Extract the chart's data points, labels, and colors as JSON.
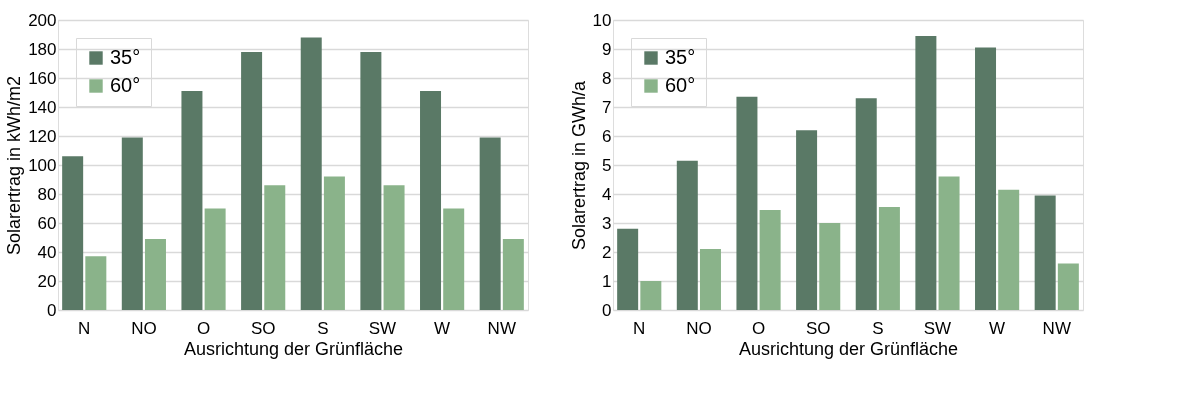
{
  "chart_data": [
    {
      "type": "bar",
      "xlabel": "Ausrichtung der Grünfläche",
      "ylabel": "Solarertrag in kWh/m2",
      "categories": [
        "N",
        "NO",
        "O",
        "SO",
        "S",
        "SW",
        "W",
        "NW"
      ],
      "series": [
        {
          "name": "35°",
          "color": "#5a7966",
          "values": [
            106,
            119,
            151,
            178,
            188,
            178,
            151,
            119
          ]
        },
        {
          "name": "60°",
          "color": "#8ab38a",
          "values": [
            37,
            49,
            70,
            86,
            92,
            86,
            70,
            49
          ]
        }
      ],
      "ylim": [
        0,
        200
      ],
      "yticks": [
        0,
        20,
        40,
        60,
        80,
        100,
        120,
        140,
        160,
        180,
        200
      ],
      "grid": "y",
      "legend": "top left"
    },
    {
      "type": "bar",
      "xlabel": "Ausrichtung der Grünfläche",
      "ylabel": "Solarertrag in GWh/a",
      "categories": [
        "N",
        "NO",
        "O",
        "SO",
        "S",
        "SW",
        "W",
        "NW"
      ],
      "series": [
        {
          "name": "35°",
          "color": "#5a7966",
          "values": [
            2.8,
            5.15,
            7.35,
            6.2,
            7.3,
            9.45,
            9.05,
            3.95
          ]
        },
        {
          "name": "60°",
          "color": "#8ab38a",
          "values": [
            1.0,
            2.1,
            3.45,
            3.0,
            3.55,
            4.6,
            4.15,
            1.6
          ]
        }
      ],
      "ylim": [
        0,
        10
      ],
      "yticks": [
        0,
        1,
        2,
        3,
        4,
        5,
        6,
        7,
        8,
        9,
        10
      ],
      "grid": "y",
      "legend": "top left"
    }
  ]
}
